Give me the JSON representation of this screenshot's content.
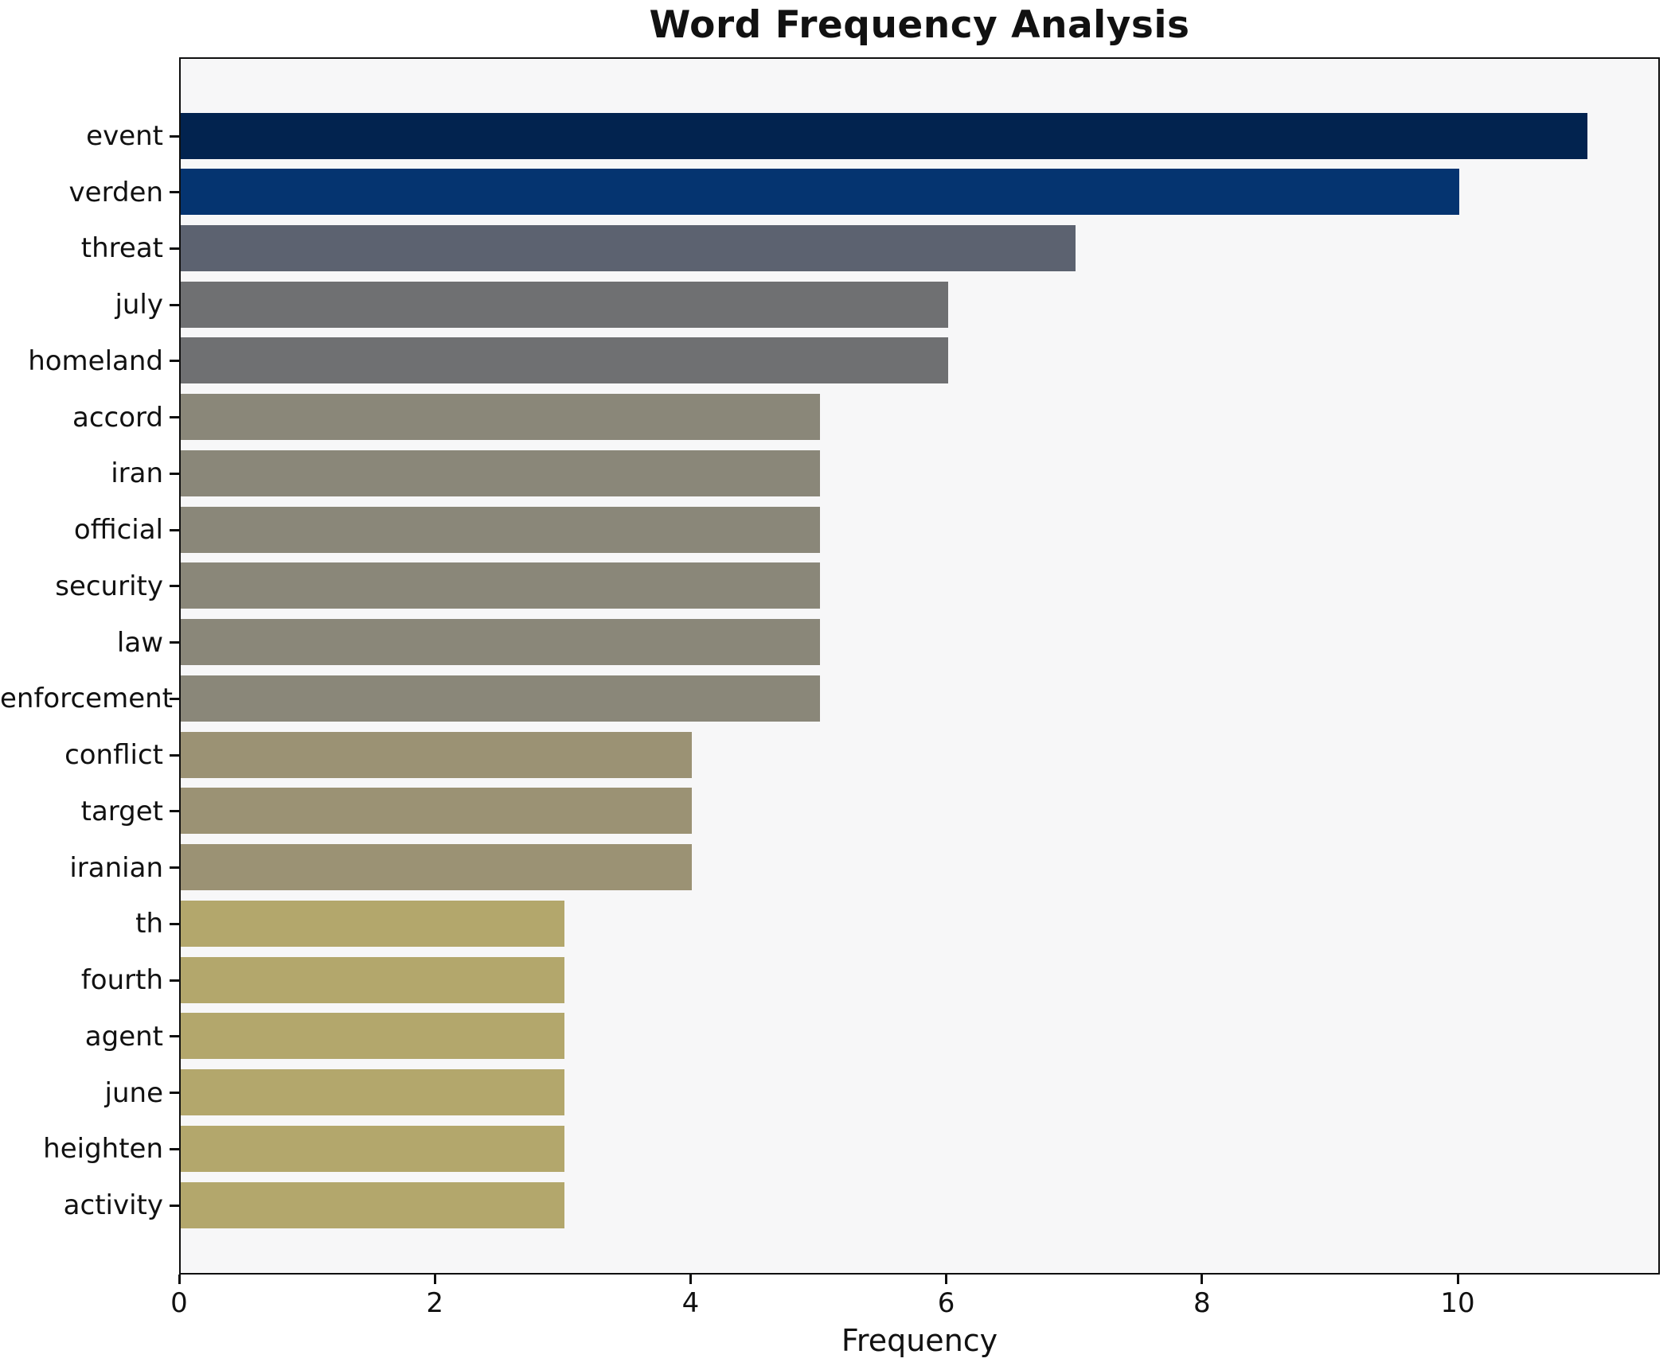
{
  "chart_data": {
    "type": "bar",
    "orientation": "horizontal",
    "title": "Word Frequency Analysis",
    "xlabel": "Frequency",
    "ylabel": "",
    "categories": [
      "event",
      "verden",
      "threat",
      "july",
      "homeland",
      "accord",
      "iran",
      "official",
      "security",
      "law",
      "enforcement",
      "conflict",
      "target",
      "iranian",
      "th",
      "fourth",
      "agent",
      "june",
      "heighten",
      "activity"
    ],
    "values": [
      11,
      10,
      7,
      6,
      6,
      5,
      5,
      5,
      5,
      5,
      5,
      4,
      4,
      4,
      3,
      3,
      3,
      3,
      3,
      3
    ],
    "bar_colors": [
      "#02234f",
      "#053470",
      "#5c6270",
      "#6f7072",
      "#6f7072",
      "#8a8779",
      "#8a8779",
      "#8a8779",
      "#8a8779",
      "#8a8779",
      "#8a8779",
      "#9b9274",
      "#9b9274",
      "#9b9274",
      "#b3a76c",
      "#b3a76c",
      "#b3a76c",
      "#b3a76c",
      "#b3a76c",
      "#b3a76c"
    ],
    "xticks": [
      0,
      2,
      4,
      6,
      8,
      10
    ],
    "xlim": [
      0,
      11.55
    ],
    "grid": false,
    "legend": "none",
    "plot_bg": "#f7f7f8",
    "figure_bg": "#ffffff",
    "axis_color": "#0f0f0f"
  }
}
